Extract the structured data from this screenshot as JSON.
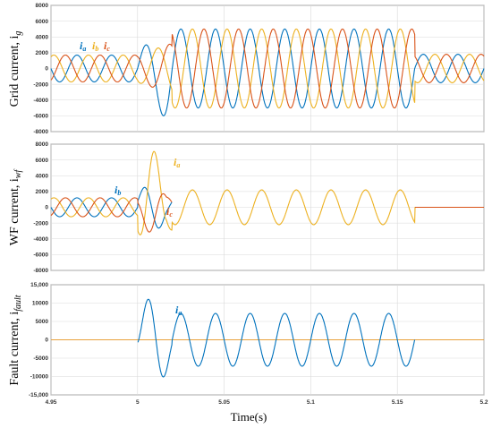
{
  "chart_data": [
    {
      "type": "line",
      "ylabel": "Grid current, i",
      "ylabel_sub": "g",
      "ylim": [
        -8000,
        8000
      ],
      "yticks": [
        "8000",
        "6000",
        "4000",
        "2000",
        "0",
        "-2000",
        "-4000",
        "-6000",
        "-8000"
      ],
      "xlim": [
        4.95,
        5.2
      ],
      "grid": true,
      "legend": [
        {
          "label": "i",
          "sub": "a",
          "color": "#0072bd"
        },
        {
          "label": "i",
          "sub": "b",
          "color": "#edb120"
        },
        {
          "label": "i",
          "sub": "c",
          "color": "#d95319"
        }
      ],
      "series": [
        {
          "color": "#0072bd",
          "phase": 0
        },
        {
          "color": "#edb120",
          "phase": -2.0944
        },
        {
          "color": "#d95319",
          "phase": 2.0944
        }
      ],
      "segments": [
        {
          "x0": 4.95,
          "x1": 5.0,
          "amplitude": 1700,
          "shape": "three-phase"
        },
        {
          "x0": 5.0,
          "x1": 5.02,
          "amplitude": 5800,
          "shape": "fault-transient"
        },
        {
          "x0": 5.02,
          "x1": 5.16,
          "amplitude": 5000,
          "shape": "three-phase"
        },
        {
          "x0": 5.16,
          "x1": 5.2,
          "amplitude": 1800,
          "shape": "three-phase"
        }
      ]
    },
    {
      "type": "line",
      "ylabel": "WF current, i",
      "ylabel_sub": "wf",
      "ylim": [
        -8000,
        8000
      ],
      "yticks": [
        "8000",
        "6000",
        "4000",
        "2000",
        "0",
        "-2000",
        "-4000",
        "-6000",
        "-8000"
      ],
      "xlim": [
        4.95,
        5.2
      ],
      "grid": true,
      "annotations": [
        {
          "label": "i",
          "sub": "b",
          "color": "#0072bd"
        },
        {
          "label": "i",
          "sub": "a",
          "color": "#edb120"
        },
        {
          "label": "i",
          "sub": "c",
          "color": "#d95319"
        }
      ],
      "segments": [
        {
          "x0": 4.95,
          "x1": 5.0,
          "amplitude": 1200,
          "shape": "three-phase"
        },
        {
          "x0": 5.0,
          "x1": 5.02,
          "amplitude": 7200,
          "shape": "fault-transient"
        },
        {
          "x0": 5.02,
          "x1": 5.16,
          "amplitude": 2200,
          "shape": "single-phase"
        },
        {
          "x0": 5.16,
          "x1": 5.2,
          "amplitude": 0,
          "shape": "flat"
        }
      ]
    },
    {
      "type": "line",
      "ylabel": "Fault current, i",
      "ylabel_sub": "fault",
      "ylim": [
        -15000,
        15000
      ],
      "yticks": [
        "15,000",
        "10000",
        "5000",
        "0",
        "-5000",
        "-10000",
        "-15,000"
      ],
      "xlim": [
        4.95,
        5.2
      ],
      "xticks": [
        "4.95",
        "5",
        "5.05",
        "5.1",
        "5.15",
        "5.2"
      ],
      "xlabel": "Time(s)",
      "grid": true,
      "annotations": [
        {
          "label": "i",
          "sub": "a",
          "color": "#0072bd"
        }
      ],
      "segments": [
        {
          "x0": 4.95,
          "x1": 5.0,
          "amplitude": 0,
          "shape": "flat"
        },
        {
          "x0": 5.0,
          "x1": 5.02,
          "amplitude": 12500,
          "shape": "fault-transient"
        },
        {
          "x0": 5.02,
          "x1": 5.16,
          "amplitude": 7200,
          "shape": "single-phase"
        },
        {
          "x0": 5.16,
          "x1": 5.2,
          "amplitude": 0,
          "shape": "flat"
        }
      ]
    }
  ]
}
